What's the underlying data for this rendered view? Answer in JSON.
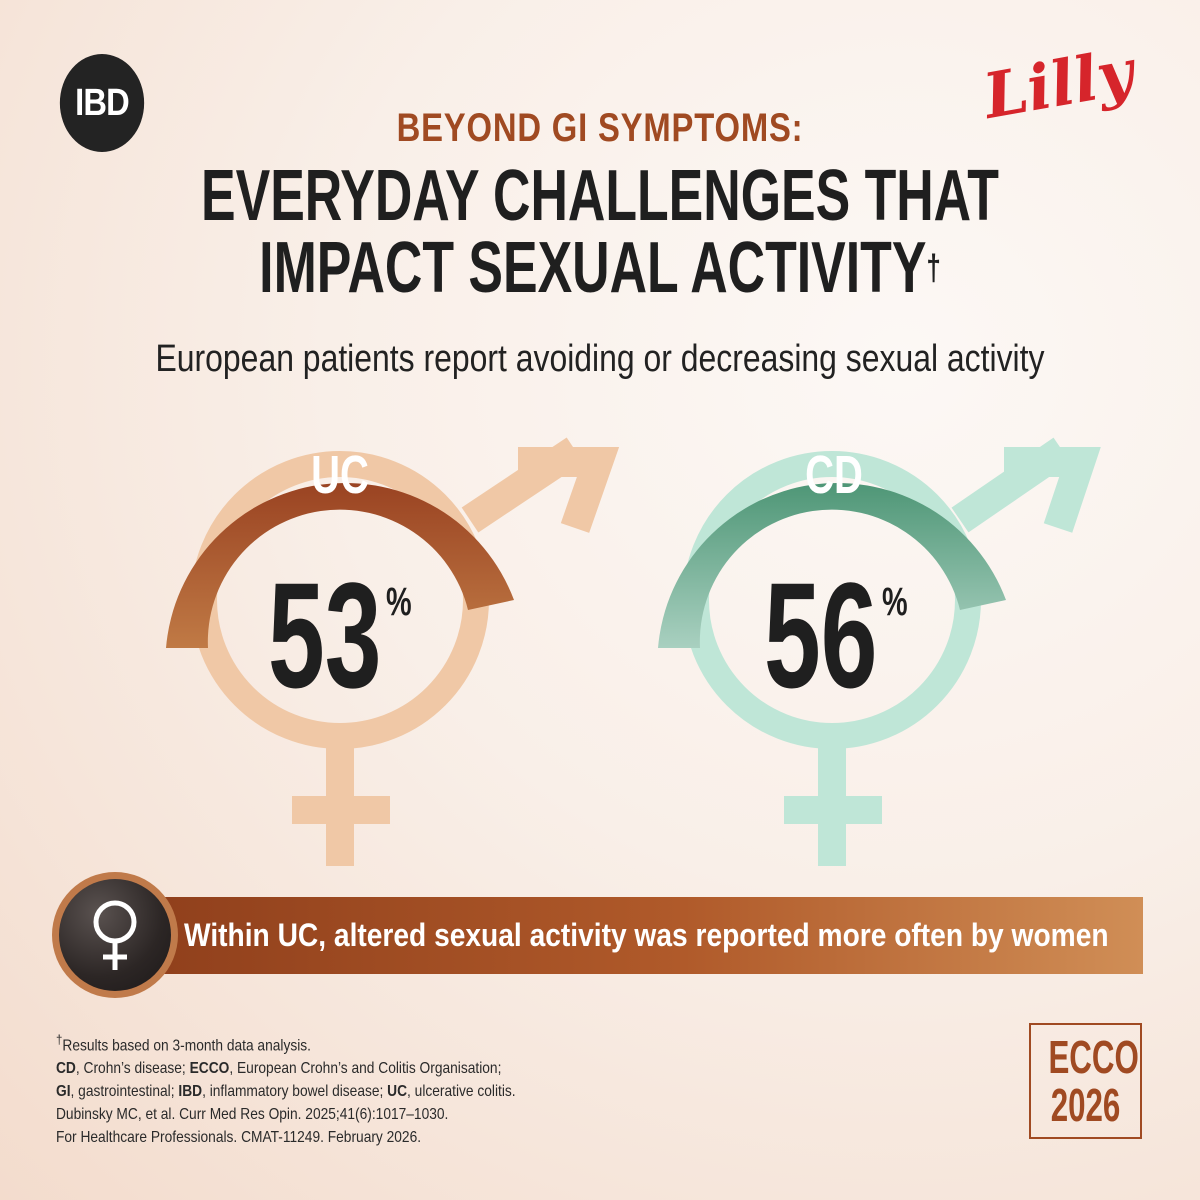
{
  "header": {
    "badge": "IBD",
    "brand": "Lilly",
    "kicker": "BEYOND GI SYMPTOMS:",
    "headline_line1": "EVERYDAY CHALLENGES THAT",
    "headline_line2": "IMPACT SEXUAL ACTIVITY",
    "headline_mark": "†",
    "subtitle": "European patients report avoiding or decreasing sexual activity"
  },
  "stats": [
    {
      "label": "UC",
      "value": "53",
      "unit": "%",
      "colors": {
        "arc": "#a14f25",
        "symbol": "#f0c8a6"
      }
    },
    {
      "label": "CD",
      "value": "56",
      "unit": "%",
      "colors": {
        "arc": "#579d7f",
        "symbol": "#bfe6d7"
      }
    }
  ],
  "callout": {
    "icon": "venus-icon",
    "text": "Within UC, altered sexual activity was reported more often by women"
  },
  "footnotes": {
    "line1_mark": "†",
    "line1": "Results based on 3-month data analysis.",
    "abbrev": [
      {
        "term": "CD",
        "def": ", Crohn’s disease; "
      },
      {
        "term": "ECCO",
        "def": ", European Crohn’s and Colitis Organisation;"
      },
      {
        "term": "GI",
        "def": ", gastrointestinal; "
      },
      {
        "term": "IBD",
        "def": ", inflammatory bowel disease; "
      },
      {
        "term": "UC",
        "def": ", ulcerative colitis."
      }
    ],
    "citation": "Dubinsky MC, et al. Curr Med Res Opin. 2025;41(6):1017–1030.",
    "legal": "For Healthcare Professionals. CMAT-11249. February 2026."
  },
  "event": {
    "line1": "ECCO",
    "line2": "2026"
  }
}
